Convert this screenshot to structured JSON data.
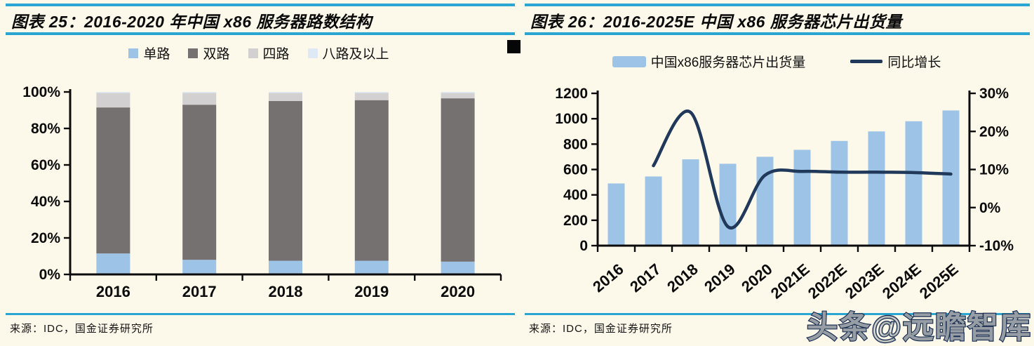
{
  "style": {
    "background": "#fcf8ea",
    "rule_color": "#2ba6d2",
    "axis_color": "#0b0b0b",
    "bar_blue": "#9dc3e6",
    "line_navy": "#20395a"
  },
  "watermark": {
    "text": "头条@远瞻智库"
  },
  "panels": [
    {
      "title": "图表 25：2016-2020 年中国 x86 服务器路数结构",
      "source": "来源：IDC，国金证券研究所"
    },
    {
      "title": "图表 26：2016-2025E 中国 x86 服务器芯片出货量",
      "source": "来源：IDC，国金证券研究所"
    }
  ],
  "chart_data": [
    {
      "type": "bar",
      "stacked": true,
      "percent": true,
      "title": "2016-2020 年中国 x86 服务器路数结构",
      "categories": [
        "2016",
        "2017",
        "2018",
        "2019",
        "2020"
      ],
      "series": [
        {
          "name": "单路",
          "color": "#9dc3e6",
          "values": [
            11.5,
            8,
            7.5,
            7.5,
            7
          ]
        },
        {
          "name": "双路",
          "color": "#767171",
          "values": [
            80,
            85,
            87.5,
            88,
            89.5
          ]
        },
        {
          "name": "四路",
          "color": "#d2d0d0",
          "values": [
            8,
            6.5,
            4.5,
            4,
            3
          ]
        },
        {
          "name": "八路及以上",
          "color": "#dee9f5",
          "values": [
            0.5,
            0.5,
            0.5,
            0.5,
            0.5
          ]
        }
      ],
      "y_axis": {
        "min": 0,
        "max": 100,
        "ticks": [
          0,
          20,
          40,
          60,
          80,
          100
        ],
        "suffix": "%"
      },
      "grid": false,
      "legend_position": "top"
    },
    {
      "type": "bar+line",
      "title": "2016-2025E 中国 x86 服务器芯片出货量",
      "categories": [
        "2016",
        "2017",
        "2018",
        "2019",
        "2020",
        "2021E",
        "2022E",
        "2023E",
        "2024E",
        "2025E"
      ],
      "bar_series": {
        "name": "中国x86服务器芯片出货量",
        "color": "#9dc3e6",
        "axis": "left",
        "values": [
          490,
          545,
          680,
          645,
          700,
          755,
          825,
          900,
          980,
          1065
        ]
      },
      "line_series": {
        "name": "同比增长",
        "color": "#20395a",
        "axis": "right",
        "unit": "%",
        "values": [
          null,
          11,
          25,
          -5,
          8.5,
          9.5,
          9.3,
          9.3,
          9.2,
          8.8
        ]
      },
      "left_axis": {
        "min": 0,
        "max": 1200,
        "ticks": [
          0,
          200,
          400,
          600,
          800,
          1000,
          1200
        ],
        "suffix": ""
      },
      "right_axis": {
        "min": -10,
        "max": 30,
        "ticks": [
          30,
          20,
          10,
          0,
          -10
        ],
        "suffix": "%"
      },
      "grid": false,
      "legend_position": "top"
    }
  ]
}
